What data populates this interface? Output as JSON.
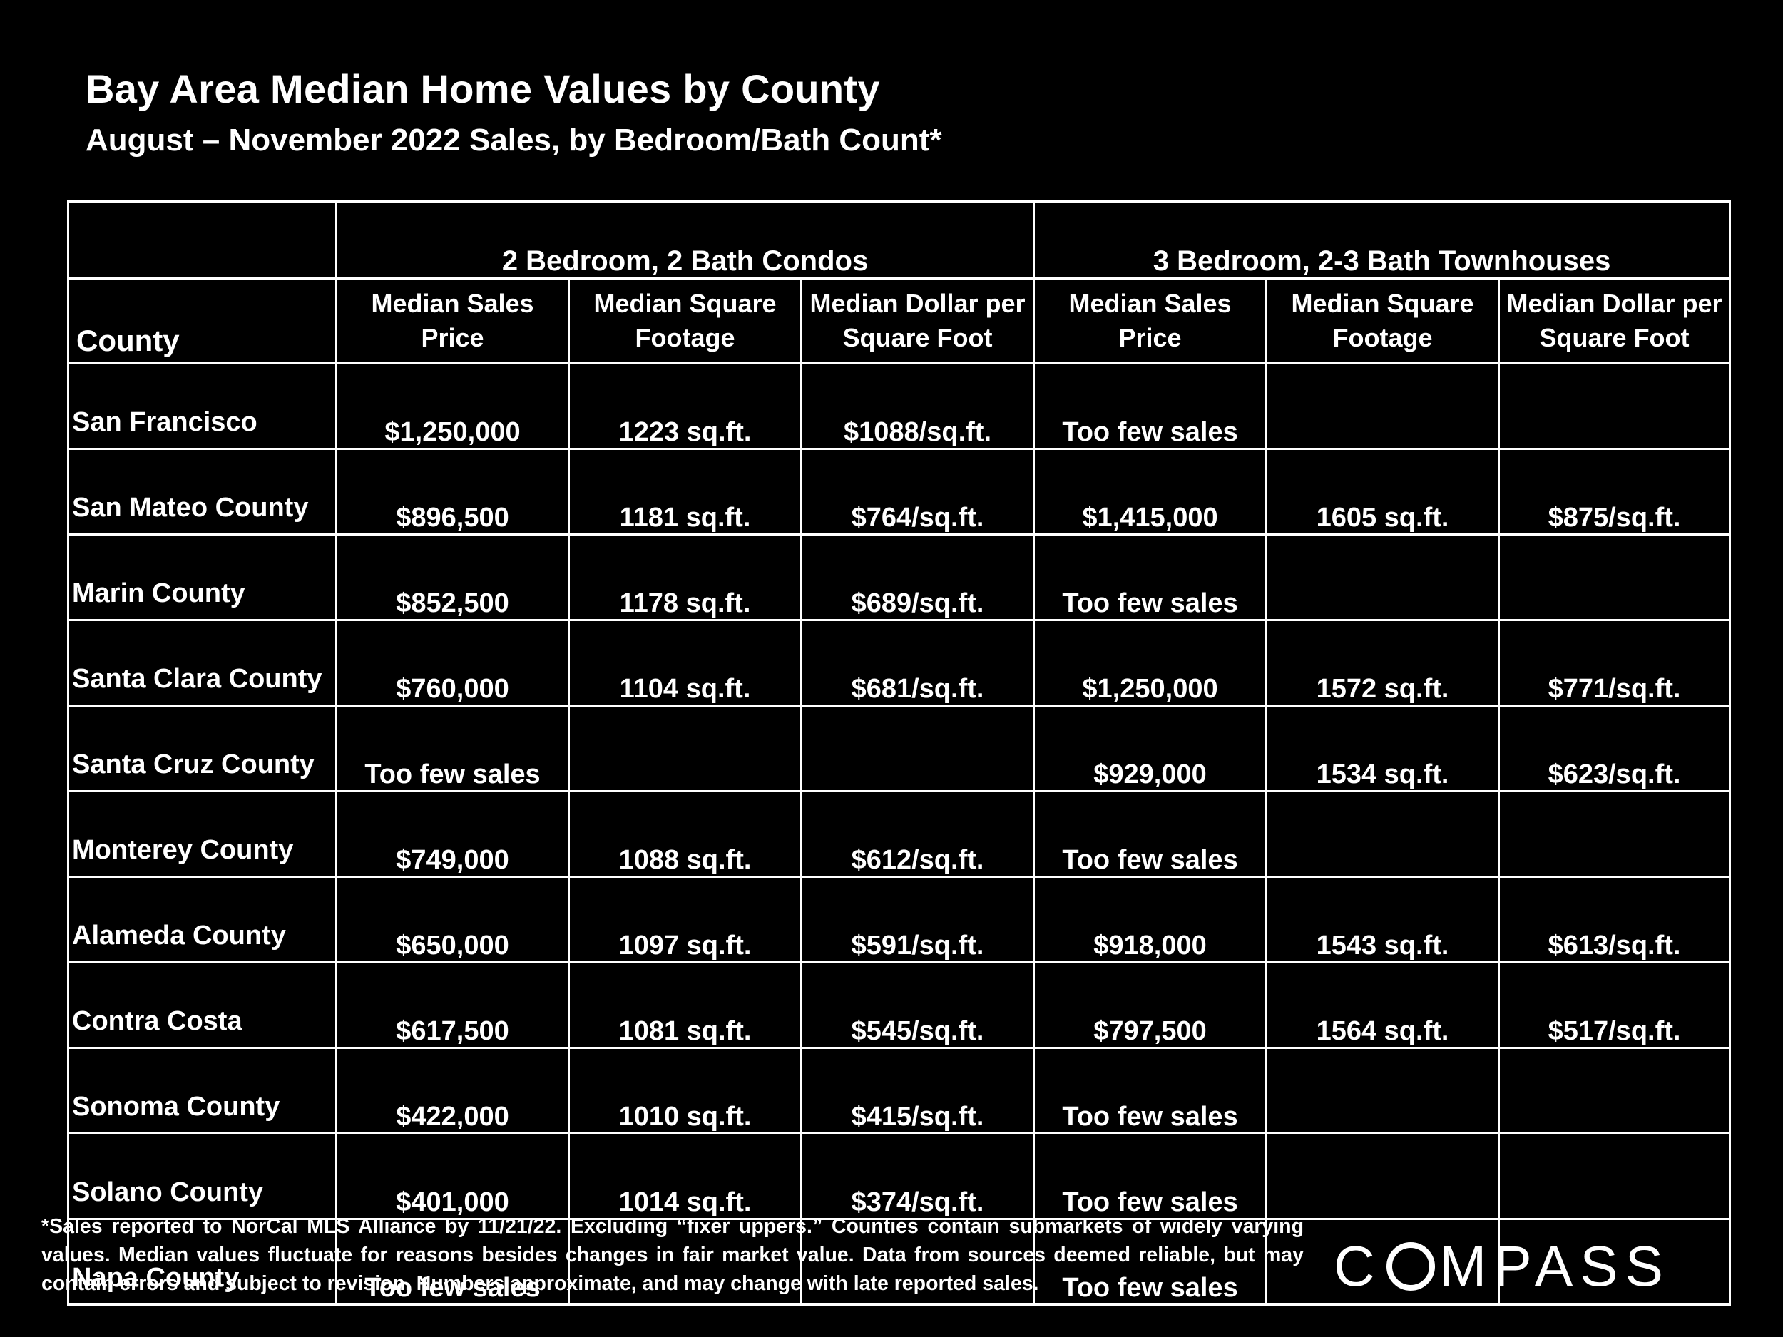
{
  "title": "Bay Area Median Home Values by County",
  "subtitle": "August – November 2022 Sales, by Bedroom/Bath Count*",
  "footnote": "*Sales reported to NorCal MLS Alliance by 11/21/22. Excluding “fixer uppers.” Counties contain submarkets of widely varying values. Median values fluctuate for reasons besides changes in fair market value. Data from sources deemed reliable, but may contain errors and subject to revision.  Numbers approximate, and may change with late reported sales.",
  "logo": {
    "pre": "C",
    "post": "MPASS"
  },
  "chart_data": {
    "type": "table",
    "groups": [
      "2 Bedroom, 2 Bath Condos",
      "3 Bedroom, 2-3 Bath Townhouses"
    ],
    "columns": [
      "County",
      "Median Sales Price",
      "Median Square Footage",
      "Median Dollar per Square Foot",
      "Median Sales Price",
      "Median Square Footage",
      "Median Dollar per Square Foot"
    ],
    "rows": [
      [
        "San Francisco",
        "$1,250,000",
        "1223 sq.ft.",
        "$1088/sq.ft.",
        "Too few sales",
        "",
        ""
      ],
      [
        "San Mateo County",
        "$896,500",
        "1181 sq.ft.",
        "$764/sq.ft.",
        "$1,415,000",
        "1605 sq.ft.",
        "$875/sq.ft."
      ],
      [
        "Marin County",
        "$852,500",
        "1178 sq.ft.",
        "$689/sq.ft.",
        "Too few sales",
        "",
        ""
      ],
      [
        "Santa Clara County",
        "$760,000",
        "1104 sq.ft.",
        "$681/sq.ft.",
        "$1,250,000",
        "1572 sq.ft.",
        "$771/sq.ft."
      ],
      [
        "Santa Cruz County",
        "Too few sales",
        "",
        "",
        "$929,000",
        "1534 sq.ft.",
        "$623/sq.ft."
      ],
      [
        "Monterey County",
        "$749,000",
        "1088 sq.ft.",
        "$612/sq.ft.",
        "Too few sales",
        "",
        ""
      ],
      [
        "Alameda County",
        "$650,000",
        "1097 sq.ft.",
        "$591/sq.ft.",
        "$918,000",
        "1543 sq.ft.",
        "$613/sq.ft."
      ],
      [
        "Contra Costa",
        "$617,500",
        "1081 sq.ft.",
        "$545/sq.ft.",
        "$797,500",
        "1564 sq.ft.",
        "$517/sq.ft."
      ],
      [
        "Sonoma County",
        "$422,000",
        "1010 sq.ft.",
        "$415/sq.ft.",
        "Too few sales",
        "",
        ""
      ],
      [
        "Solano County",
        "$401,000",
        "1014 sq.ft.",
        "$374/sq.ft.",
        "Too few sales",
        "",
        ""
      ],
      [
        "Napa County",
        "Too few sales",
        "",
        "",
        "Too few sales",
        "",
        ""
      ]
    ]
  }
}
